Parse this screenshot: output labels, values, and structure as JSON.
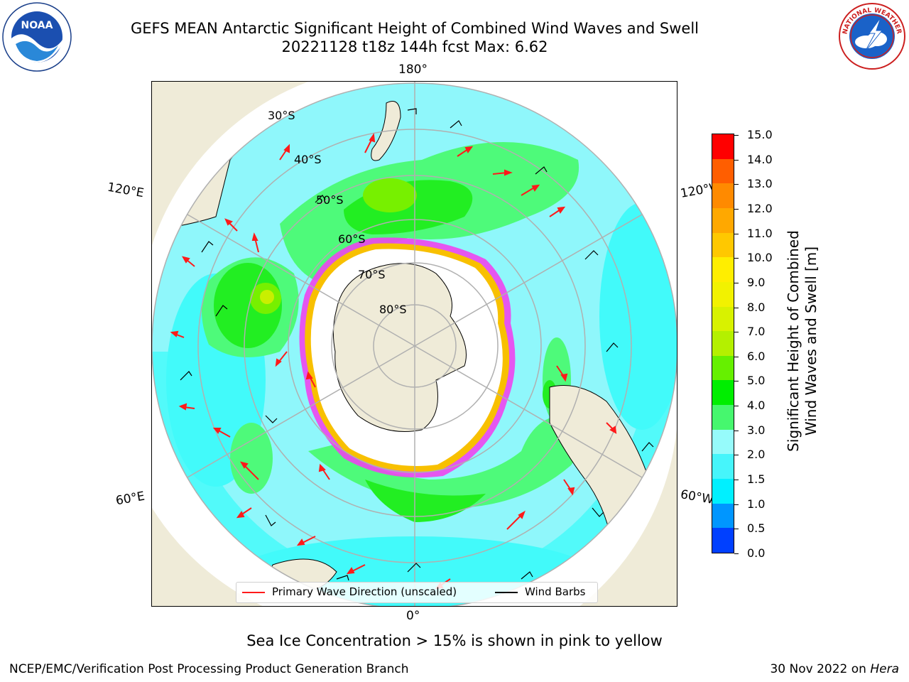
{
  "header": {
    "title_line1": "GEFS MEAN Antarctic Significant Height of Combined Wind Waves and Swell",
    "title_line2": "20221128 t18z 144h fcst   Max: 6.62"
  },
  "logos": {
    "left": "noaa-logo",
    "left_text": "NOAA",
    "left_ring_text": "NATIONAL OCEANIC AND ATMOSPHERIC ADMINISTRATION · U.S. DEPARTMENT OF COMMERCE",
    "right": "national-weather-service-logo",
    "right_ring_text": "NATIONAL WEATHER SERVICE"
  },
  "map": {
    "projection": "south-polar-stereographic",
    "longitude_labels": {
      "top": "180°",
      "bottom": "0°",
      "left_upper": "120°E",
      "right_upper": "120°W",
      "left_lower": "60°E",
      "right_lower": "60°W"
    },
    "latitude_labels": [
      "30°S",
      "40°S",
      "50°S",
      "60°S",
      "70°S",
      "80°S"
    ],
    "colors": {
      "land": "#efebd8",
      "ocean_low": "#8ff7fb",
      "ocean_mid": "#42fafa",
      "wave_3_4": "#4efa7a",
      "wave_4_5": "#22ee22",
      "wave_5_6": "#77f000",
      "wave_6_7": "#c9ef00",
      "ice": "#ffffff",
      "ice_edge_pink": "#ee44ee",
      "ice_edge_yellow": "#f8c000",
      "graticule": "#b0b0b0",
      "wave_arrow": "#ff1a1a",
      "wind_barb": "#000000"
    }
  },
  "colorbar": {
    "label_line1": "Significant Height of Combined",
    "label_line2": "Wind Waves and Swell [m]",
    "ticks": [
      "15.0",
      "14.0",
      "13.0",
      "12.0",
      "11.0",
      "10.0",
      "9.0",
      "8.0",
      "7.0",
      "6.0",
      "5.0",
      "4.0",
      "3.0",
      "2.0",
      "1.5",
      "1.0",
      "0.5",
      "0.0"
    ],
    "colors_top_to_bottom": [
      "#ff0000",
      "#ff3000",
      "#ff5e00",
      "#ff8a00",
      "#ffa800",
      "#ffc800",
      "#ffee00",
      "#f2f200",
      "#d8f200",
      "#b4f000",
      "#66f000",
      "#00ee00",
      "#46f76e",
      "#96fbfb",
      "#46f5fb",
      "#00f0ff",
      "#0096ff",
      "#0040ff",
      "#0000ff"
    ]
  },
  "legend": {
    "wave_label": "Primary Wave Direction (unscaled)",
    "wind_label": "Wind Barbs"
  },
  "footer": {
    "ice_note": "Sea Ice Concentration > 15% is shown in pink to yellow",
    "credit_left": "NCEP/EMC/Verification Post Processing Product Generation Branch",
    "date": "30 Nov 2022 on ",
    "host": "Hera"
  }
}
